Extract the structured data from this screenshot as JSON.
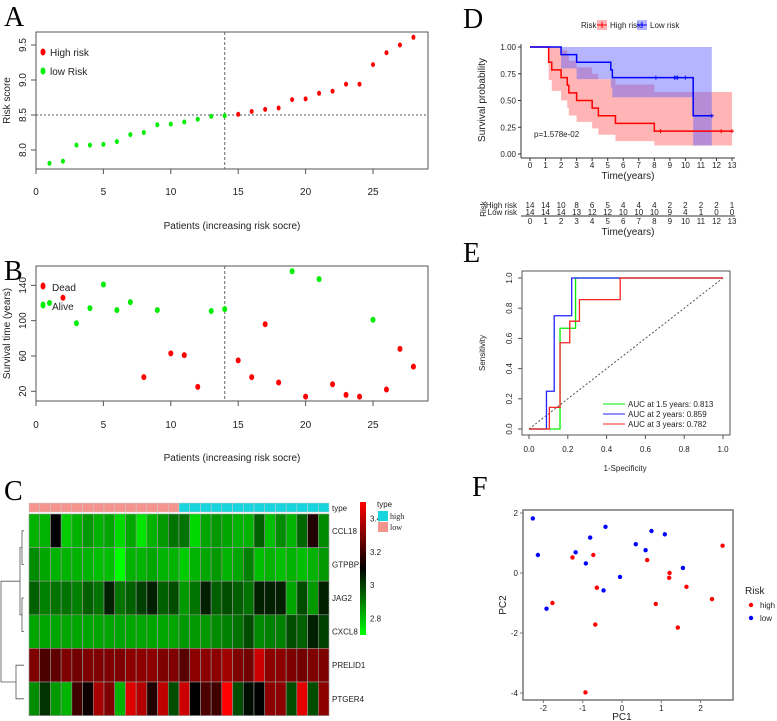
{
  "panel_letters": {
    "A": "A",
    "B": "B",
    "C": "C",
    "D": "D",
    "E": "E",
    "F": "F"
  },
  "colors": {
    "high": "#ff0000",
    "low_green": "#00ee00",
    "low_blue": "#0000ff",
    "annot_low": "#f4948c",
    "annot_high": "#18d4dc"
  },
  "chart_data": [
    {
      "id": "A",
      "type": "scatter",
      "xlabel": "Patients (increasing risk socre)",
      "ylabel": "Risk score",
      "xticks": [
        "0",
        "5",
        "10",
        "15",
        "20",
        "25"
      ],
      "yticks": [
        "8.0",
        "8.5",
        "9.0",
        "9.5"
      ],
      "xlim": [
        0,
        28
      ],
      "ylim": [
        7.75,
        9.65
      ],
      "cutoff_patient": 14,
      "cutoff_score": 8.5,
      "legend": [
        "High risk",
        "low Risk"
      ],
      "values": [
        7.81,
        7.84,
        8.07,
        8.07,
        8.08,
        8.12,
        8.22,
        8.25,
        8.36,
        8.37,
        8.4,
        8.44,
        8.48,
        8.49,
        8.51,
        8.55,
        8.58,
        8.6,
        8.72,
        8.73,
        8.81,
        8.84,
        8.94,
        8.94,
        9.22,
        9.39,
        9.5,
        9.61
      ]
    },
    {
      "id": "B",
      "type": "scatter",
      "xlabel": "Patients (increasing risk socre)",
      "ylabel": "Survival time (years)",
      "xticks": [
        "0",
        "5",
        "10",
        "15",
        "20",
        "25"
      ],
      "yticks": [
        "20",
        "60",
        "100",
        "140"
      ],
      "xlim": [
        0,
        28
      ],
      "ylim": [
        10,
        160
      ],
      "cutoff_patient": 14,
      "legend": [
        "Dead",
        "Alive"
      ],
      "values": [
        120,
        126,
        97,
        114,
        141,
        112,
        121,
        36,
        112,
        63,
        61,
        25,
        111,
        113,
        55,
        36,
        96,
        30,
        156,
        14,
        147,
        28,
        16,
        14,
        101,
        22,
        68,
        48
      ],
      "status": [
        "alive",
        "dead",
        "alive",
        "alive",
        "alive",
        "alive",
        "alive",
        "dead",
        "alive",
        "dead",
        "dead",
        "dead",
        "alive",
        "alive",
        "dead",
        "dead",
        "dead",
        "dead",
        "alive",
        "dead",
        "alive",
        "dead",
        "dead",
        "dead",
        "alive",
        "dead",
        "dead",
        "dead"
      ]
    },
    {
      "id": "C",
      "type": "heatmap",
      "genes": [
        "CCL18",
        "GTPBP1",
        "JAG2",
        "CXCL8",
        "PRELID1",
        "PTGER4"
      ],
      "annotation_label": "type",
      "annotation": [
        "low",
        "low",
        "low",
        "low",
        "low",
        "low",
        "low",
        "low",
        "low",
        "low",
        "low",
        "low",
        "low",
        "low",
        "high",
        "high",
        "high",
        "high",
        "high",
        "high",
        "high",
        "high",
        "high",
        "high",
        "high",
        "high",
        "high",
        "high"
      ],
      "legend_title": "type",
      "legend_items": [
        "high",
        "low"
      ],
      "colorbar_ticks": [
        "3.4",
        "3.2",
        "3",
        "2.8"
      ],
      "color_range": [
        2.7,
        3.5
      ],
      "values": [
        [
          2.82,
          2.82,
          3.1,
          2.78,
          2.82,
          2.86,
          2.82,
          2.84,
          2.76,
          2.84,
          2.74,
          2.82,
          2.86,
          2.92,
          2.92,
          2.76,
          2.84,
          2.86,
          2.84,
          2.82,
          2.82,
          2.95,
          2.8,
          2.88,
          2.82,
          2.94,
          3.15,
          2.88
        ],
        [
          2.88,
          2.84,
          2.82,
          2.82,
          2.82,
          2.82,
          2.8,
          2.8,
          2.7,
          2.82,
          2.82,
          2.84,
          2.82,
          2.82,
          2.78,
          2.82,
          2.84,
          2.86,
          2.82,
          2.84,
          2.9,
          2.8,
          2.82,
          2.8,
          2.82,
          2.8,
          2.82,
          2.86
        ],
        [
          2.95,
          2.9,
          2.92,
          2.92,
          2.9,
          2.95,
          2.92,
          3.05,
          2.92,
          2.95,
          3.0,
          3.05,
          2.95,
          2.98,
          2.86,
          2.92,
          3.05,
          2.95,
          2.98,
          2.95,
          2.92,
          3.05,
          3.05,
          3.05,
          2.84,
          2.98,
          2.86,
          3.05
        ],
        [
          2.84,
          2.84,
          2.84,
          2.84,
          2.84,
          2.84,
          2.84,
          2.84,
          2.84,
          2.84,
          2.84,
          2.84,
          2.84,
          2.84,
          2.86,
          2.86,
          2.86,
          2.88,
          2.9,
          2.92,
          2.98,
          2.88,
          2.9,
          2.9,
          2.98,
          2.95,
          3.05,
          3.0
        ],
        [
          3.3,
          3.22,
          3.25,
          3.3,
          3.28,
          3.3,
          3.3,
          3.3,
          3.3,
          3.32,
          3.32,
          3.32,
          3.3,
          3.3,
          3.24,
          3.32,
          3.32,
          3.32,
          3.35,
          3.3,
          3.28,
          3.42,
          3.32,
          3.32,
          3.3,
          3.28,
          3.3,
          3.3
        ],
        [
          2.88,
          3.02,
          2.86,
          2.82,
          3.2,
          3.12,
          3.36,
          3.3,
          2.82,
          3.45,
          3.38,
          3.15,
          3.4,
          2.98,
          3.42,
          3.1,
          3.22,
          3.2,
          3.5,
          2.98,
          3.08,
          3.1,
          3.32,
          3.32,
          2.98,
          3.46,
          2.98,
          3.32
        ]
      ]
    },
    {
      "id": "D",
      "type": "line",
      "xlabel": "Time(years)",
      "ylabel": "Survival probability",
      "xticks": [
        "0",
        "1",
        "2",
        "3",
        "4",
        "5",
        "6",
        "7",
        "8",
        "9",
        "10",
        "11",
        "12",
        "13"
      ],
      "yticks": [
        "0.00",
        "0.25",
        "0.50",
        "0.75",
        "1.00"
      ],
      "legend_title": "Risk",
      "pvalue": "p=1.578e-02",
      "series": [
        {
          "name": "High risk",
          "times": [
            0,
            1.2,
            1.4,
            2.0,
            2.4,
            2.5,
            3.0,
            4.0,
            4.4,
            5.5,
            8.0,
            13
          ],
          "surv": [
            1,
            0.857,
            0.786,
            0.714,
            0.643,
            0.571,
            0.5,
            0.429,
            0.357,
            0.286,
            0.214,
            0.214
          ],
          "upper": [
            1,
            1,
            1,
            0.97,
            0.92,
            0.87,
            0.81,
            0.75,
            0.7,
            0.65,
            0.58,
            0.58
          ],
          "lower": [
            1,
            0.69,
            0.59,
            0.5,
            0.43,
            0.36,
            0.3,
            0.24,
            0.18,
            0.12,
            0.08,
            0.08
          ],
          "censored": [
            8.4,
            12.3,
            13
          ]
        },
        {
          "name": "Low risk",
          "times": [
            0,
            2.0,
            3.0,
            5.2,
            5.3,
            10.5,
            11.7
          ],
          "surv": [
            1,
            0.929,
            0.857,
            0.786,
            0.714,
            0.357,
            0.357
          ],
          "upper": [
            1,
            1,
            1,
            1,
            1,
            1,
            1
          ],
          "lower": [
            1,
            0.8,
            0.7,
            0.62,
            0.53,
            0.08,
            0.08
          ],
          "censored": [
            8.1,
            9.3,
            9.4,
            9.5,
            10.0,
            11.7
          ]
        }
      ],
      "risk_table": {
        "title": "Risk",
        "xlabel": "Time(years)",
        "rows": [
          {
            "name": "High risk",
            "counts": [
              "14",
              "14",
              "10",
              "8",
              "6",
              "5",
              "4",
              "4",
              "4",
              "2",
              "2",
              "2",
              "2",
              "1"
            ]
          },
          {
            "name": "Low risk",
            "counts": [
              "14",
              "14",
              "14",
              "13",
              "12",
              "12",
              "10",
              "10",
              "10",
              "9",
              "4",
              "1",
              "0",
              "0"
            ]
          }
        ]
      }
    },
    {
      "id": "E",
      "type": "line",
      "xlabel": "1-Specificity",
      "ylabel": "Sensitivity",
      "xticks": [
        "0.0",
        "0.2",
        "0.4",
        "0.6",
        "0.8",
        "1.0"
      ],
      "yticks": [
        "0.0",
        "0.2",
        "0.4",
        "0.6",
        "0.8",
        "1.0"
      ],
      "series": [
        {
          "name": "AUC at 1.5 years: 0.813",
          "color": "#00ee00",
          "x": [
            0,
            0.16,
            0.16,
            0.24,
            0.24,
            1
          ],
          "y": [
            0,
            0,
            0.667,
            0.667,
            1,
            1
          ]
        },
        {
          "name": "AUC at 2 years: 0.859",
          "color": "#2222ff",
          "x": [
            0,
            0.09,
            0.09,
            0.13,
            0.13,
            0.22,
            0.22,
            1
          ],
          "y": [
            0,
            0,
            0.25,
            0.25,
            0.75,
            0.75,
            1,
            1
          ]
        },
        {
          "name": "AUC at 3 years: 0.782",
          "color": "#ff2222",
          "x": [
            0,
            0.105,
            0.105,
            0.16,
            0.16,
            0.21,
            0.21,
            0.26,
            0.26,
            0.47,
            0.47,
            1
          ],
          "y": [
            0,
            0,
            0.143,
            0.143,
            0.571,
            0.571,
            0.714,
            0.714,
            0.857,
            0.857,
            1,
            1
          ]
        }
      ]
    },
    {
      "id": "F",
      "type": "scatter",
      "xlabel": "PC1",
      "ylabel": "PC2",
      "xticks": [
        "-2",
        "-1",
        "0",
        "1",
        "2"
      ],
      "yticks": [
        "2",
        "0",
        "-2",
        "-4"
      ],
      "legend_title": "Risk",
      "legend": [
        "high",
        "low"
      ],
      "high": [
        [
          -1.26,
          0.52
        ],
        [
          -0.73,
          0.6
        ],
        [
          -1.77,
          -1.0
        ],
        [
          -0.64,
          -0.49
        ],
        [
          -0.68,
          -1.72
        ],
        [
          -0.93,
          -3.98
        ],
        [
          0.64,
          0.43
        ],
        [
          1.21,
          0
        ],
        [
          1.2,
          -0.16
        ],
        [
          0.86,
          -1.03
        ],
        [
          1.64,
          -0.46
        ],
        [
          1.42,
          -1.82
        ],
        [
          2.29,
          -0.87
        ],
        [
          2.56,
          0.91
        ]
      ],
      "low": [
        [
          -2.27,
          1.82
        ],
        [
          -2.14,
          0.6
        ],
        [
          -1.18,
          0.69
        ],
        [
          -0.81,
          1.18
        ],
        [
          -0.92,
          0.32
        ],
        [
          -0.42,
          1.54
        ],
        [
          -0.05,
          -0.13
        ],
        [
          -0.47,
          -0.58
        ],
        [
          0.35,
          0.96
        ],
        [
          0.6,
          0.76
        ],
        [
          0.75,
          1.4
        ],
        [
          1.09,
          1.29
        ],
        [
          1.55,
          0.17
        ],
        [
          -1.92,
          -1.19
        ]
      ]
    }
  ]
}
